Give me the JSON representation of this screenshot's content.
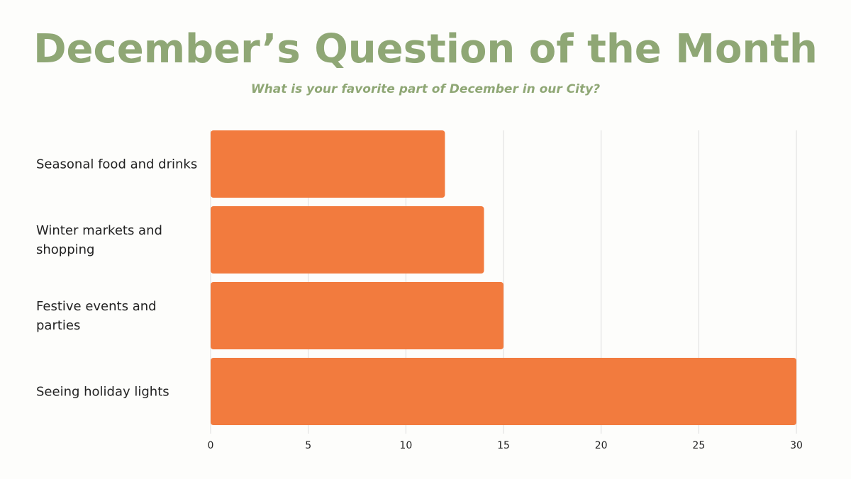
{
  "page": {
    "title": "December’s Question of the Month",
    "subtitle": "What is your favorite part of December in our City?"
  },
  "colors": {
    "title": "#8fa775",
    "bar": "#f27b3e",
    "grid": "#dddddd",
    "text": "#222222"
  },
  "chart_data": {
    "type": "bar",
    "orientation": "horizontal",
    "title": "December’s Question of the Month",
    "subtitle": "What is your favorite part of December in our City?",
    "categories": [
      [
        "Seasonal food and drinks"
      ],
      [
        "Winter markets and",
        "shopping"
      ],
      [
        "Festive events and",
        "parties"
      ],
      [
        "Seeing holiday lights"
      ]
    ],
    "values": [
      12,
      14,
      15,
      30
    ],
    "xlim": [
      0,
      30
    ],
    "xticks": [
      0,
      5,
      10,
      15,
      20,
      25,
      30
    ],
    "xlabel": "",
    "ylabel": "",
    "grid": true,
    "legend": "none"
  }
}
